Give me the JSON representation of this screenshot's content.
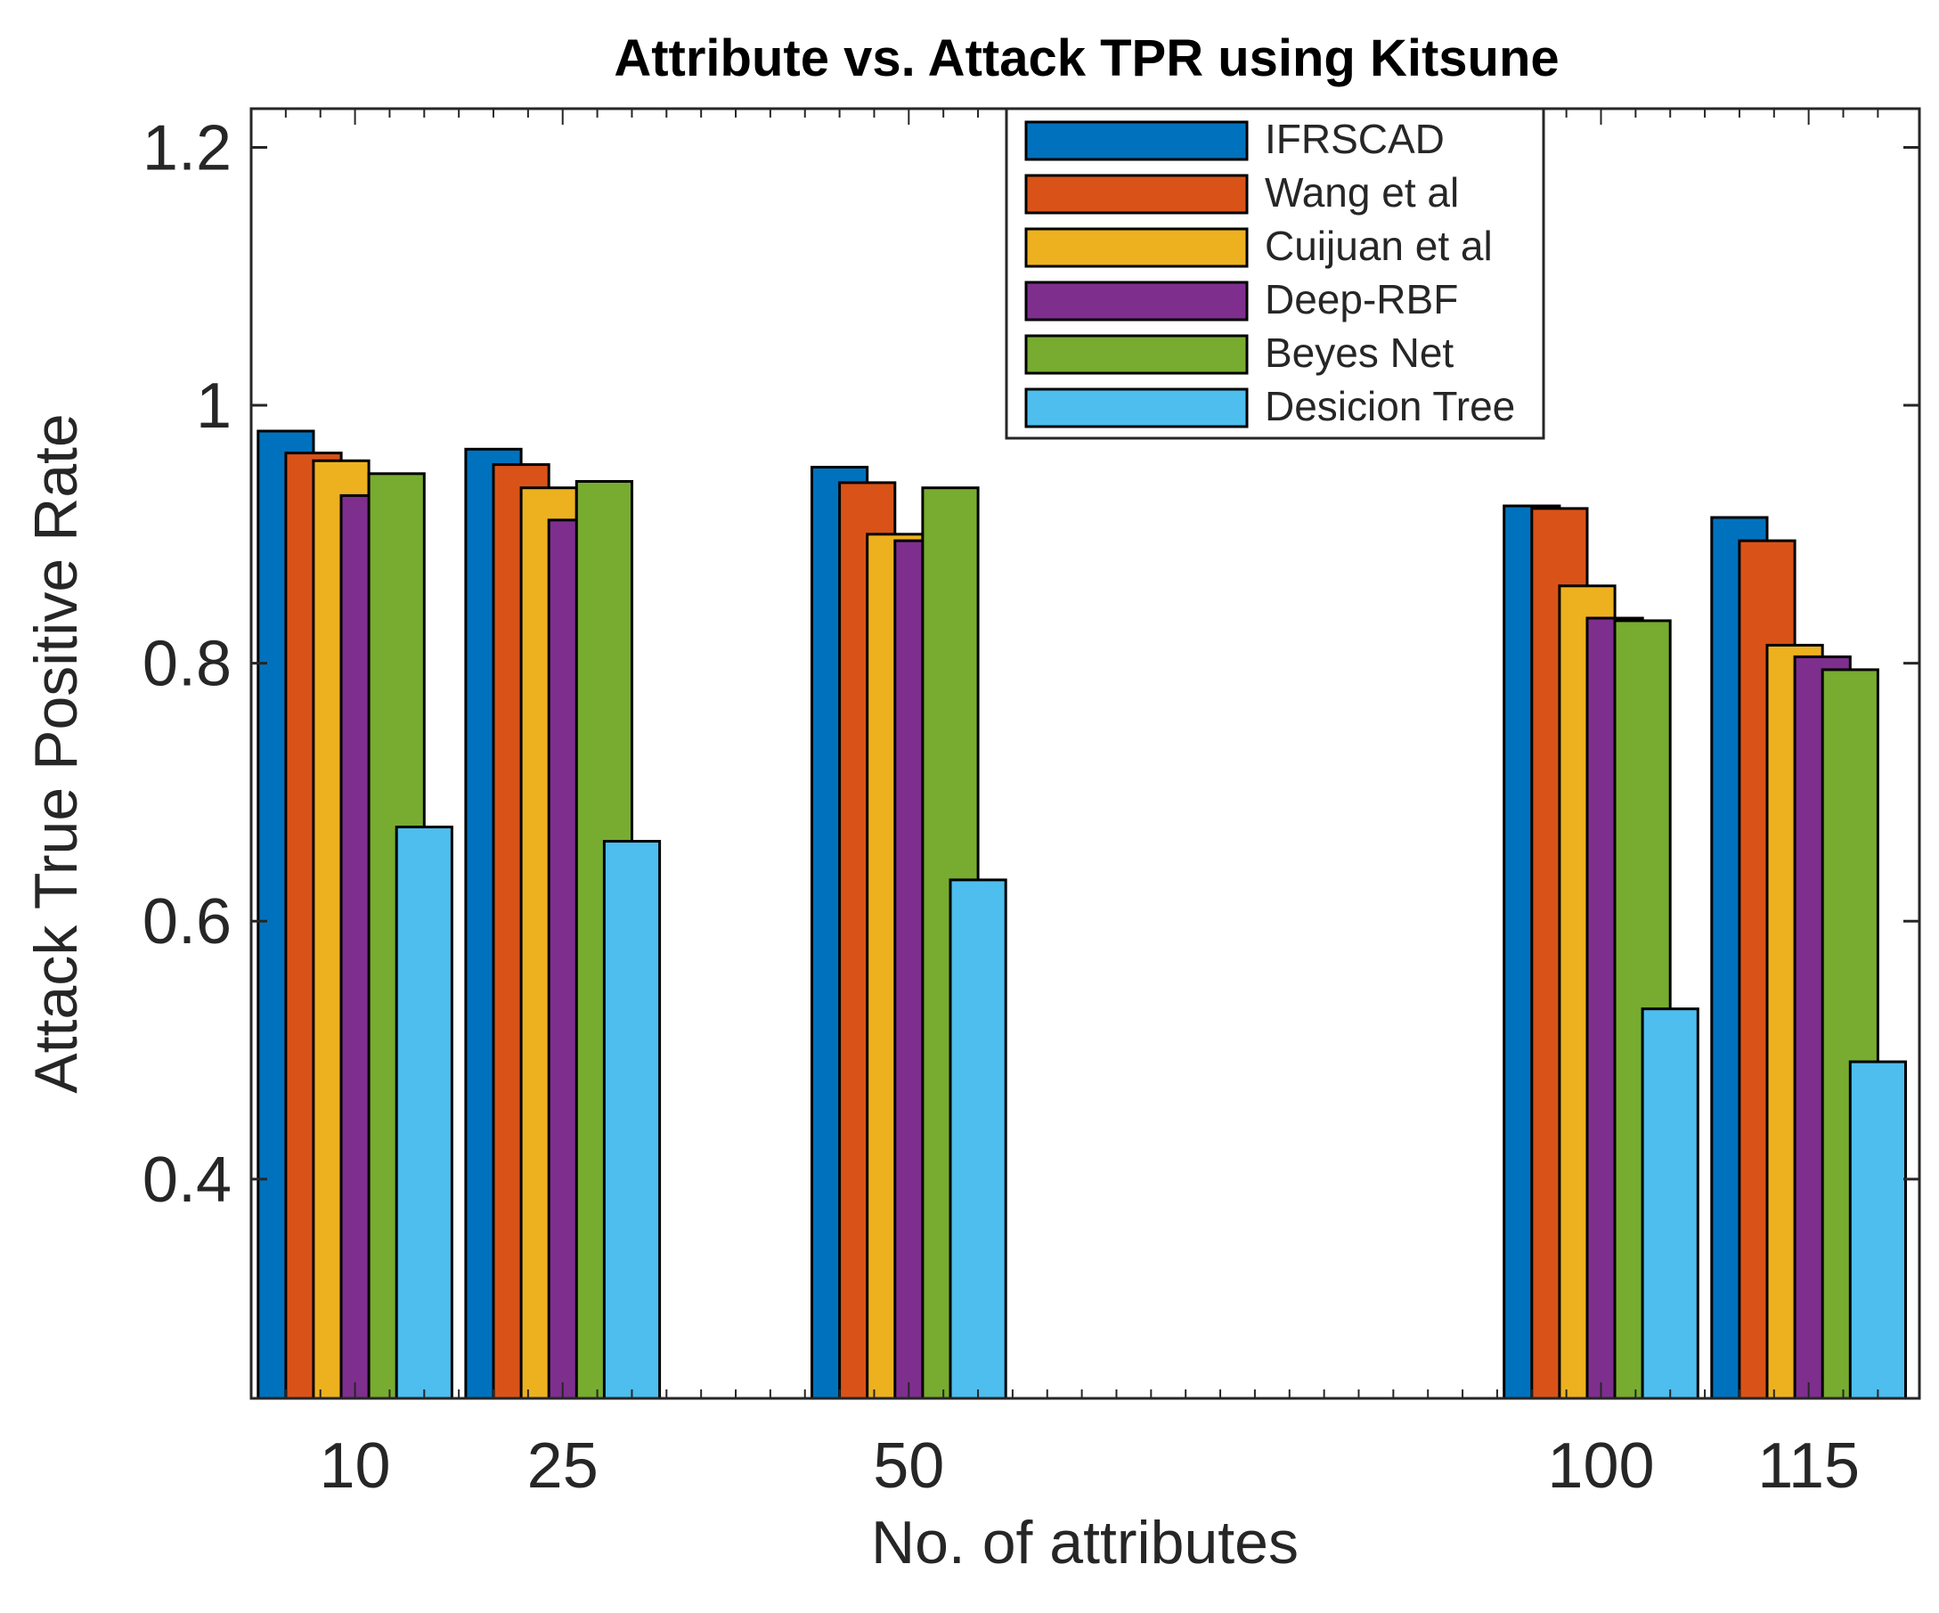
{
  "chart_data": {
    "type": "bar",
    "title": "Attribute vs. Attack TPR using Kitsune",
    "xlabel": "No. of attributes",
    "ylabel": "Attack True Positive Rate",
    "categories": [
      "10",
      "25",
      "50",
      "100",
      "115"
    ],
    "x": [
      10,
      25,
      50,
      100,
      115
    ],
    "xlim": [
      2.5,
      123
    ],
    "ylim": [
      0.23,
      1.23
    ],
    "yticks": [
      "0.4",
      "0.6",
      "0.8",
      "1",
      "1.2"
    ],
    "ytick_values": [
      0.4,
      0.6,
      0.8,
      1.0,
      1.2
    ],
    "grid": false,
    "legend_position": "top-center",
    "series": [
      {
        "name": "IFRSCAD",
        "color": "#0072BD",
        "values": [
          0.98,
          0.966,
          0.952,
          0.922,
          0.913
        ]
      },
      {
        "name": "Wang et al",
        "color": "#D95319",
        "values": [
          0.963,
          0.954,
          0.94,
          0.92,
          0.895
        ]
      },
      {
        "name": "Cuijuan et al",
        "color": "#EDB120",
        "values": [
          0.957,
          0.936,
          0.9,
          0.86,
          0.814
        ]
      },
      {
        "name": "Deep-RBF",
        "color": "#7E2F8E",
        "values": [
          0.93,
          0.911,
          0.895,
          0.835,
          0.805
        ]
      },
      {
        "name": "Beyes Net",
        "color": "#77AC30",
        "values": [
          0.947,
          0.941,
          0.936,
          0.833,
          0.795
        ]
      },
      {
        "name": "Desicion Tree",
        "color": "#4DBEEE",
        "values": [
          0.673,
          0.662,
          0.632,
          0.532,
          0.491
        ]
      }
    ]
  }
}
